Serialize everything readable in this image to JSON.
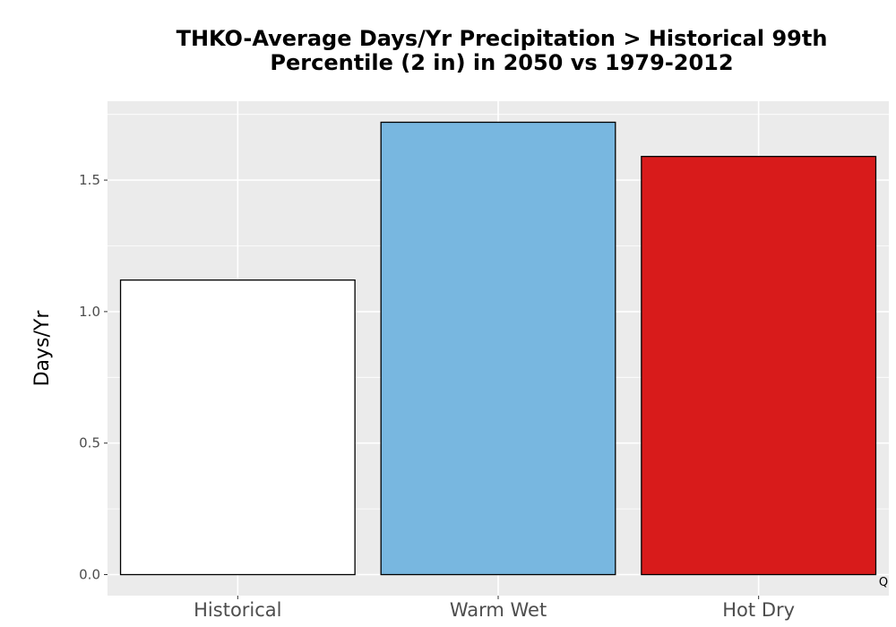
{
  "chart_data": {
    "type": "bar",
    "title_lines": [
      "THKO-Average Days/Yr Precipitation > Historical 99th",
      "Percentile (2 in) in 2050 vs 1979-2012"
    ],
    "xlabel": "",
    "ylabel": "Days/Yr",
    "categories": [
      "Historical",
      "Warm Wet",
      "Hot Dry"
    ],
    "values": [
      1.12,
      1.72,
      1.59
    ],
    "colors": [
      "#ffffff",
      "#78b7e0",
      "#d81b1b"
    ],
    "ylim": [
      -0.08,
      1.8
    ],
    "yticks": [
      0.0,
      0.5,
      1.0,
      1.5
    ],
    "ytick_labels": [
      "0.0",
      "0.5",
      "1.0",
      "1.5"
    ],
    "grid": true,
    "legend": "none",
    "corner_mark": "Q"
  }
}
